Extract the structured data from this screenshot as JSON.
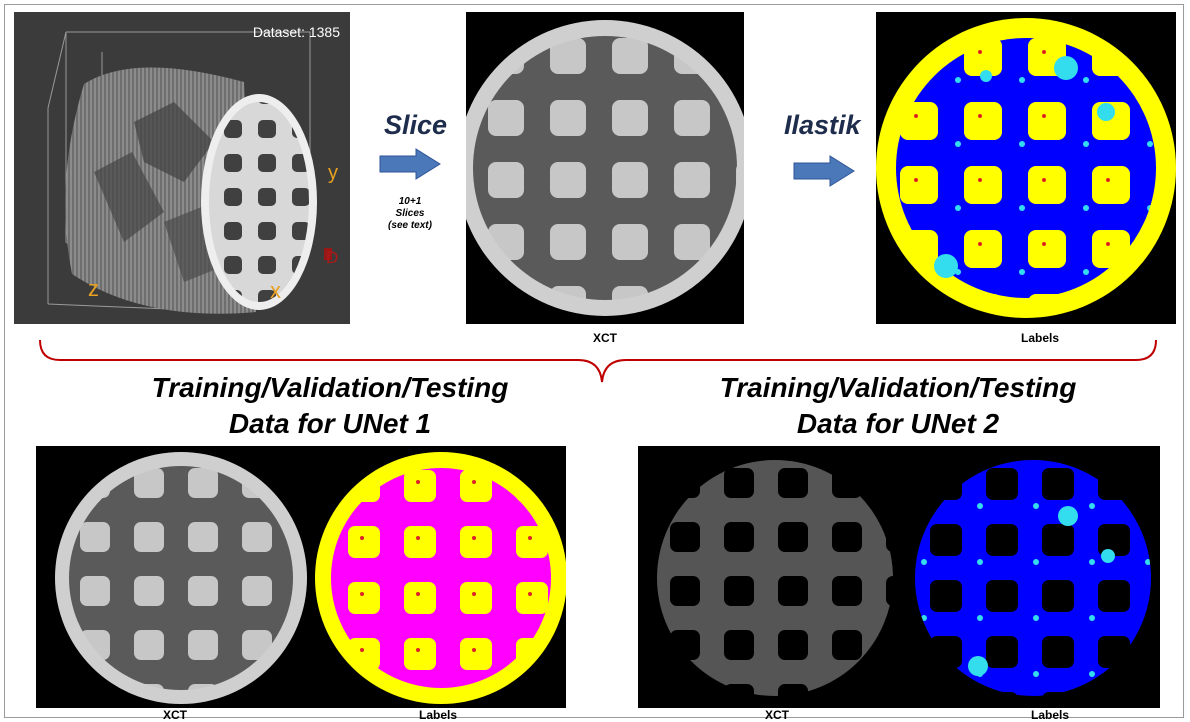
{
  "volume_panel": {
    "dataset_label": "Dataset: 1385",
    "axes": {
      "y": "y",
      "z": "z",
      "x": "x",
      "d": "D"
    }
  },
  "arrows": {
    "slice_label": "Slice",
    "slice_note_line1": "10+1",
    "slice_note_line2": "Slices",
    "slice_note_line3": "(see text)",
    "ilastik_label": "Ilastik"
  },
  "captions": {
    "top_xct": "XCT",
    "top_labels": "Labels",
    "unet1_xct": "XCT",
    "unet1_labels": "Labels",
    "unet2_xct": "XCT",
    "unet2_labels": "Labels"
  },
  "headings": {
    "unet1_line1": "Training/Validation/Testing",
    "unet1_line2": "Data for UNet 1",
    "unet2_line1": "Training/Validation/Testing",
    "unet2_line2": "Data for UNet 2"
  },
  "colors": {
    "yellow": "#ffff00",
    "blue": "#0000ff",
    "cyan": "#33ddee",
    "magenta": "#ff00ff",
    "red": "#dd2222",
    "brace": "#c00000",
    "arrow": "#4a78b8",
    "axis_label": "#e8a020"
  }
}
